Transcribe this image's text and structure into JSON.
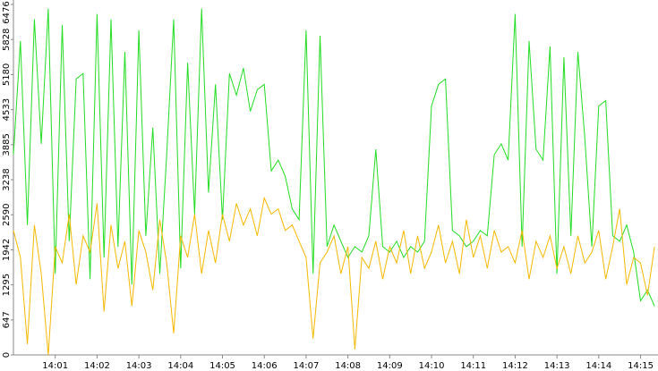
{
  "chart_data": {
    "type": "line",
    "x": [
      "14:00:00",
      "14:00:10",
      "14:00:20",
      "14:00:30",
      "14:00:40",
      "14:00:50",
      "14:01:00",
      "14:01:10",
      "14:01:20",
      "14:01:30",
      "14:01:40",
      "14:01:50",
      "14:02:00",
      "14:02:10",
      "14:02:20",
      "14:02:30",
      "14:02:40",
      "14:02:50",
      "14:03:00",
      "14:03:10",
      "14:03:20",
      "14:03:30",
      "14:03:40",
      "14:03:50",
      "14:04:00",
      "14:04:10",
      "14:04:20",
      "14:04:30",
      "14:04:40",
      "14:04:50",
      "14:05:00",
      "14:05:10",
      "14:05:20",
      "14:05:30",
      "14:05:40",
      "14:05:50",
      "14:06:00",
      "14:06:10",
      "14:06:20",
      "14:06:30",
      "14:06:40",
      "14:06:50",
      "14:07:00",
      "14:07:10",
      "14:07:20",
      "14:07:30",
      "14:07:40",
      "14:07:50",
      "14:08:00",
      "14:08:10",
      "14:08:20",
      "14:08:30",
      "14:08:40",
      "14:08:50",
      "14:09:00",
      "14:09:10",
      "14:09:20",
      "14:09:30",
      "14:09:40",
      "14:09:50",
      "14:10:00",
      "14:10:10",
      "14:10:20",
      "14:10:30",
      "14:10:40",
      "14:10:50",
      "14:11:00",
      "14:11:10",
      "14:11:20",
      "14:11:30",
      "14:11:40",
      "14:11:50",
      "14:12:00",
      "14:12:10",
      "14:12:20",
      "14:12:30",
      "14:12:40",
      "14:12:50",
      "14:13:00",
      "14:13:10",
      "14:13:20",
      "14:13:30",
      "14:13:40",
      "14:13:50",
      "14:14:00",
      "14:14:10",
      "14:14:20",
      "14:14:30",
      "14:14:40",
      "14:14:50",
      "14:15:00",
      "14:15:10",
      "14:15:20"
    ],
    "series": [
      {
        "color": "#22dd22",
        "values": [
          3700,
          5800,
          2400,
          6200,
          3900,
          6400,
          1500,
          6100,
          2100,
          5100,
          5200,
          1400,
          6300,
          1800,
          6200,
          2000,
          5600,
          1300,
          6000,
          2200,
          4200,
          1500,
          3700,
          6200,
          1600,
          5400,
          2600,
          6400,
          3000,
          5000,
          2500,
          5200,
          4800,
          5300,
          4500,
          4900,
          5000,
          3400,
          3600,
          3300,
          2700,
          2500,
          6000,
          1500,
          5900,
          2000,
          2400,
          2100,
          1800,
          2000,
          1900,
          2200,
          3800,
          2000,
          1900,
          2100,
          1800,
          2000,
          1900,
          2100,
          4600,
          5000,
          5100,
          2300,
          2200,
          2000,
          2100,
          2300,
          2200,
          3700,
          3900,
          3600,
          6300,
          2000,
          5800,
          3800,
          3600,
          5700,
          1500,
          5500,
          2200,
          5600,
          4000,
          2000,
          4600,
          4700,
          2200,
          2100,
          2400,
          1900,
          1000,
          1200,
          900
        ]
      },
      {
        "color": "#f5b800",
        "values": [
          2300,
          1800,
          200,
          2400,
          1500,
          0,
          2000,
          1700,
          2600,
          1300,
          2200,
          1900,
          2800,
          800,
          2400,
          1600,
          2100,
          900,
          2300,
          1900,
          1200,
          2500,
          1700,
          400,
          2200,
          1800,
          2600,
          1500,
          2300,
          1700,
          2600,
          2100,
          2800,
          2400,
          2700,
          2200,
          2900,
          2600,
          2700,
          2300,
          2400,
          2100,
          1800,
          300,
          1700,
          1900,
          2200,
          1500,
          2000,
          100,
          1800,
          1600,
          2100,
          1400,
          2000,
          1700,
          2300,
          1500,
          2200,
          1600,
          1900,
          2400,
          1700,
          2100,
          1500,
          2500,
          1800,
          2200,
          1600,
          2300,
          1900,
          2000,
          1700,
          2300,
          1400,
          2100,
          1800,
          2200,
          1600,
          2000,
          1500,
          2200,
          1700,
          1900,
          2300,
          1400,
          2000,
          2700,
          1300,
          1800,
          1700,
          1100,
          2000
        ]
      }
    ],
    "xlim": [
      "14:00:00",
      "14:15:25"
    ],
    "xticks": [
      "14:01",
      "14:02",
      "14:03",
      "14:04",
      "14:05",
      "14:06",
      "14:07",
      "14:08",
      "14:09",
      "14:10",
      "14:11",
      "14:12",
      "14:13",
      "14:14",
      "14:15"
    ],
    "ylim": [
      0,
      6476
    ],
    "yticks": [
      0,
      647,
      1295,
      1942,
      2590,
      3238,
      3885,
      4533,
      5180,
      5828,
      6476
    ]
  }
}
